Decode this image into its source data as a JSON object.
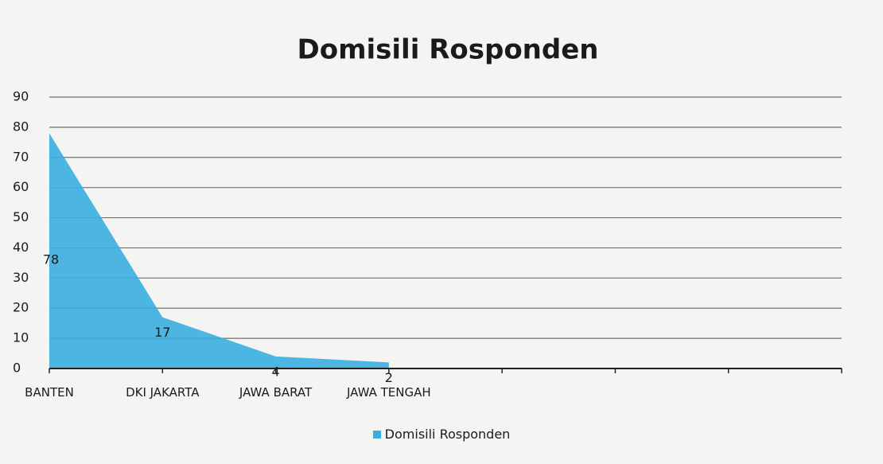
{
  "chart_data": {
    "type": "area",
    "title": "Domisili Rosponden",
    "categories": [
      "BANTEN",
      "DKI JAKARTA",
      "JAWA BARAT",
      "JAWA TENGAH",
      null,
      null,
      null,
      null
    ],
    "series": [
      {
        "name": "Domisili Rosponden",
        "color": "#3aaee0",
        "values": [
          78,
          17,
          4,
          2,
          null,
          null,
          null,
          null
        ]
      }
    ],
    "ylim": [
      0,
      90
    ],
    "yticks": [
      0,
      10,
      20,
      30,
      40,
      50,
      60,
      70,
      80,
      90
    ],
    "grid": true,
    "legend": "bottom"
  }
}
